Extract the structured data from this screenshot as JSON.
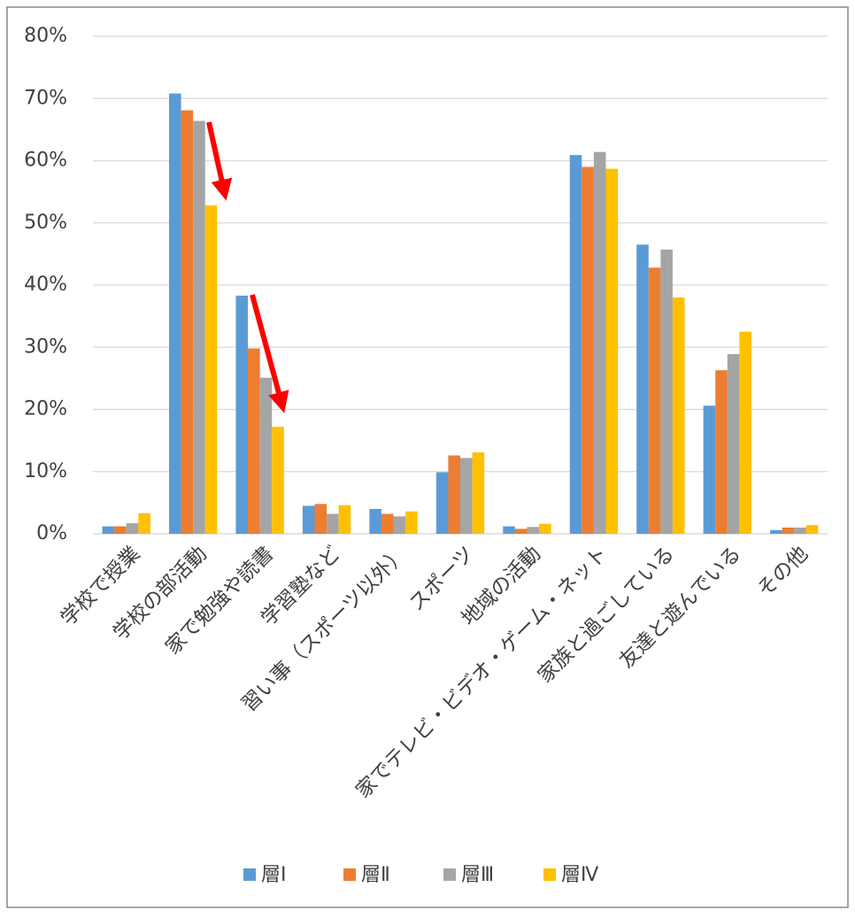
{
  "chart_data": {
    "type": "bar",
    "categories": [
      "学校で授業",
      "学校の部活動",
      "家で勉強や読書",
      "学習塾など",
      "習い事（スポーツ以外）",
      "スポーツ",
      "地域の活動",
      "家でテレビ・ビデオ・ゲーム・ネット",
      "家族と過ごしている",
      "友達と遊んでいる",
      "その他"
    ],
    "series": [
      {
        "name": "層Ⅰ",
        "color": "#5b9bd5",
        "values": [
          1.2,
          70.8,
          38.3,
          4.5,
          4.0,
          9.9,
          1.2,
          60.9,
          46.5,
          20.6,
          0.6
        ]
      },
      {
        "name": "層Ⅱ",
        "color": "#ed7d31",
        "values": [
          1.2,
          68.1,
          29.8,
          4.8,
          3.2,
          12.6,
          0.8,
          59.0,
          42.8,
          26.3,
          1.0
        ]
      },
      {
        "name": "層Ⅲ",
        "color": "#a5a5a5",
        "values": [
          1.7,
          66.4,
          25.1,
          3.2,
          2.8,
          12.2,
          1.1,
          61.4,
          45.7,
          28.9,
          1.0
        ]
      },
      {
        "name": "層Ⅳ",
        "color": "#ffc000",
        "values": [
          3.3,
          52.8,
          17.2,
          4.6,
          3.6,
          13.1,
          1.6,
          58.7,
          38.0,
          32.5,
          1.4
        ]
      }
    ],
    "ylim": [
      0,
      80
    ],
    "yticks": [
      {
        "value": 0,
        "label": "0%"
      },
      {
        "value": 10,
        "label": "10%"
      },
      {
        "value": 20,
        "label": "20%"
      },
      {
        "value": 30,
        "label": "30%"
      },
      {
        "value": 40,
        "label": "40%"
      },
      {
        "value": 50,
        "label": "50%"
      },
      {
        "value": 60,
        "label": "60%"
      },
      {
        "value": 70,
        "label": "70%"
      },
      {
        "value": 80,
        "label": "80%"
      }
    ],
    "grid": true,
    "legend": "bottom"
  }
}
